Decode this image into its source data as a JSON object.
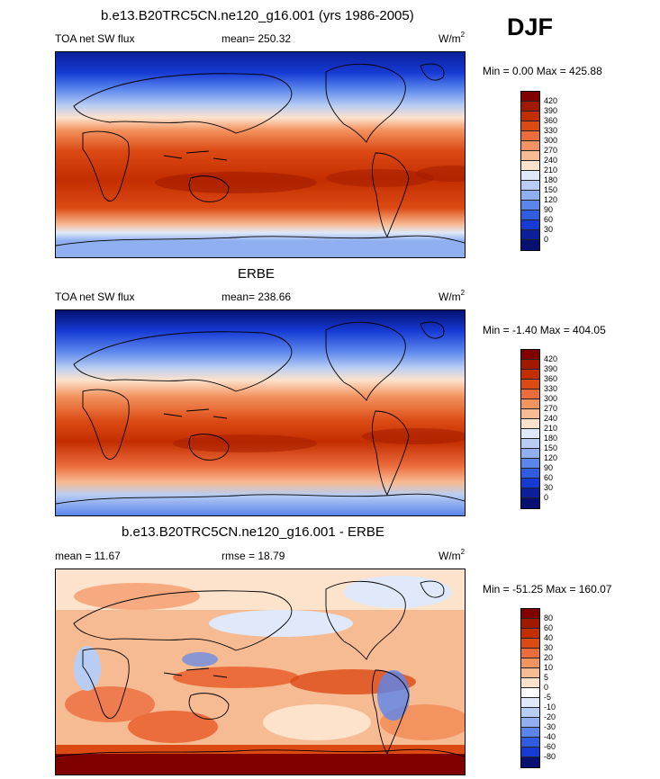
{
  "season": "DJF",
  "panels": [
    {
      "title": "b.e13.B20TRC5CN.ne120_g16.001 (yrs 1986-2005)",
      "left_label": "TOA net SW flux",
      "center_label": "mean= 250.32",
      "units_base": "W/m",
      "units_exp": "2",
      "minmax": "Min =   0.00 Max = 425.88",
      "ticks": [
        "420",
        "390",
        "360",
        "330",
        "300",
        "270",
        "240",
        "210",
        "180",
        "150",
        "120",
        "90",
        "60",
        "30",
        "0"
      ]
    },
    {
      "title": "ERBE",
      "left_label": "TOA net SW flux",
      "center_label": "mean= 238.66",
      "units_base": "W/m",
      "units_exp": "2",
      "minmax": "Min =  -1.40 Max = 404.05",
      "ticks": [
        "420",
        "390",
        "360",
        "330",
        "300",
        "270",
        "240",
        "210",
        "180",
        "150",
        "120",
        "90",
        "60",
        "30",
        "0"
      ]
    },
    {
      "title": "b.e13.B20TRC5CN.ne120_g16.001 - ERBE",
      "left_label": "mean =  11.67",
      "center_label": "rmse =  18.79",
      "units_base": "W/m",
      "units_exp": "2",
      "minmax": "Min = -51.25 Max = 160.07",
      "ticks": [
        "80",
        "60",
        "40",
        "30",
        "20",
        "10",
        "5",
        "0",
        "-5",
        "-10",
        "-20",
        "-30",
        "-40",
        "-60",
        "-80"
      ]
    }
  ],
  "colors": {
    "flux_scale": [
      "#800000",
      "#a11a00",
      "#c32d00",
      "#dc4a14",
      "#ec6d3c",
      "#f3935f",
      "#f7bb94",
      "#fde2cc",
      "#dfe9f9",
      "#b8cdf3",
      "#90aff0",
      "#5a86ec",
      "#2f5ce0",
      "#163ad4",
      "#0a1f99",
      "#051070"
    ],
    "diff_scale": [
      "#800000",
      "#a11a00",
      "#c32d00",
      "#dc4a14",
      "#ec6d3c",
      "#f3935f",
      "#f7bb94",
      "#fde2cc",
      "#ffffff",
      "#dfe9f9",
      "#b8cdf3",
      "#90aff0",
      "#5a86ec",
      "#2f5ce0",
      "#163ad4",
      "#051070"
    ]
  }
}
